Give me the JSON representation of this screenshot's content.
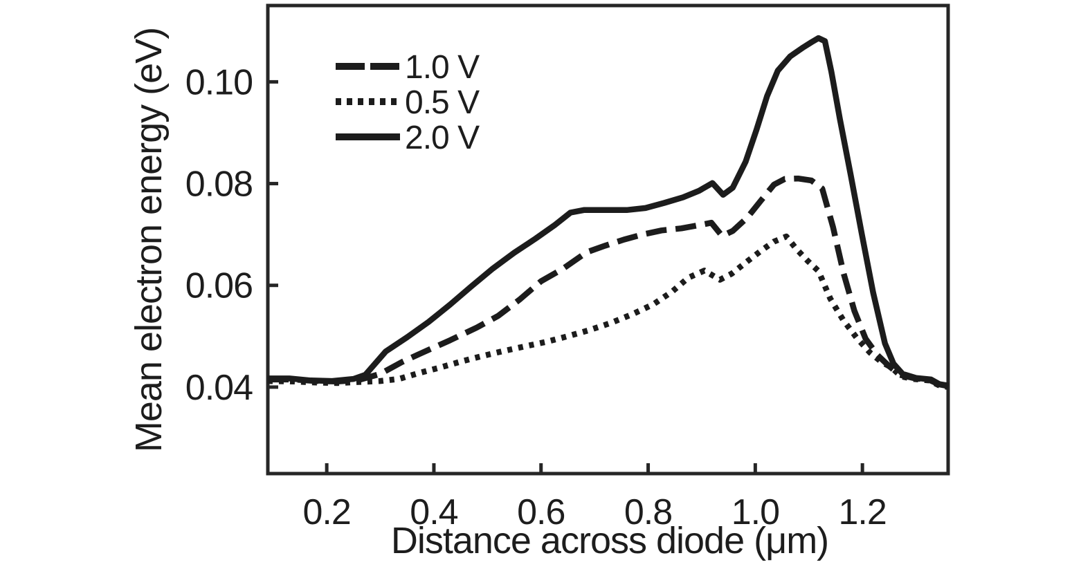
{
  "figure": {
    "background_color": "#ffffff",
    "line_color": "#1c1c1c",
    "axis_color": "#262626"
  },
  "chart_data": {
    "type": "line",
    "title": "",
    "xlabel": "Distance across diode (μm)",
    "ylabel": "Mean electron energy (eV)",
    "xlim": [
      0.09,
      1.36
    ],
    "ylim": [
      0.023,
      0.115
    ],
    "x_ticks": [
      0.2,
      0.4,
      0.6,
      0.8,
      1.0,
      1.2
    ],
    "x_tick_labels": [
      "0.2",
      "0.4",
      "0.6",
      "0.8",
      "1.0",
      "1.2"
    ],
    "y_ticks": [
      0.04,
      0.06,
      0.08,
      0.1
    ],
    "y_tick_labels": [
      "0.04",
      "0.06",
      "0.08",
      "0.10"
    ],
    "grid": false,
    "legend_position": "upper left inside plot",
    "series": [
      {
        "name": "1.0 V",
        "style": "dashed",
        "color": "#1c1c1c",
        "points": [
          [
            0.09,
            0.0415
          ],
          [
            0.14,
            0.0415
          ],
          [
            0.18,
            0.0412
          ],
          [
            0.22,
            0.0411
          ],
          [
            0.26,
            0.0414
          ],
          [
            0.3,
            0.0426
          ],
          [
            0.34,
            0.0449
          ],
          [
            0.375,
            0.0466
          ],
          [
            0.43,
            0.0492
          ],
          [
            0.48,
            0.0517
          ],
          [
            0.52,
            0.054
          ],
          [
            0.56,
            0.0572
          ],
          [
            0.6,
            0.0608
          ],
          [
            0.64,
            0.0632
          ],
          [
            0.685,
            0.0665
          ],
          [
            0.72,
            0.0678
          ],
          [
            0.755,
            0.069
          ],
          [
            0.79,
            0.07
          ],
          [
            0.825,
            0.0708
          ],
          [
            0.862,
            0.0712
          ],
          [
            0.898,
            0.0719
          ],
          [
            0.918,
            0.0723
          ],
          [
            0.938,
            0.0697
          ],
          [
            0.958,
            0.0707
          ],
          [
            0.985,
            0.0733
          ],
          [
            1.01,
            0.0766
          ],
          [
            1.035,
            0.0798
          ],
          [
            1.055,
            0.0809
          ],
          [
            1.08,
            0.081
          ],
          [
            1.105,
            0.0806
          ],
          [
            1.125,
            0.079
          ],
          [
            1.145,
            0.0715
          ],
          [
            1.165,
            0.0623
          ],
          [
            1.185,
            0.055
          ],
          [
            1.206,
            0.0495
          ],
          [
            1.228,
            0.0463
          ],
          [
            1.25,
            0.0441
          ],
          [
            1.27,
            0.0424
          ],
          [
            1.295,
            0.0418
          ],
          [
            1.325,
            0.0414
          ],
          [
            1.342,
            0.0406
          ],
          [
            1.36,
            0.0403
          ]
        ]
      },
      {
        "name": "0.5 V",
        "style": "dotted",
        "color": "#1c1c1c",
        "points": [
          [
            0.09,
            0.0412
          ],
          [
            0.14,
            0.0411
          ],
          [
            0.18,
            0.0409
          ],
          [
            0.22,
            0.0408
          ],
          [
            0.26,
            0.041
          ],
          [
            0.3,
            0.0412
          ],
          [
            0.335,
            0.0416
          ],
          [
            0.37,
            0.0427
          ],
          [
            0.41,
            0.0438
          ],
          [
            0.45,
            0.045
          ],
          [
            0.49,
            0.0461
          ],
          [
            0.53,
            0.0471
          ],
          [
            0.57,
            0.048
          ],
          [
            0.61,
            0.0489
          ],
          [
            0.65,
            0.05
          ],
          [
            0.69,
            0.0512
          ],
          [
            0.73,
            0.0526
          ],
          [
            0.77,
            0.0543
          ],
          [
            0.81,
            0.0563
          ],
          [
            0.845,
            0.0588
          ],
          [
            0.875,
            0.0615
          ],
          [
            0.905,
            0.0629
          ],
          [
            0.934,
            0.0611
          ],
          [
            0.956,
            0.0623
          ],
          [
            0.985,
            0.0647
          ],
          [
            1.012,
            0.0669
          ],
          [
            1.035,
            0.0686
          ],
          [
            1.058,
            0.0696
          ],
          [
            1.078,
            0.067
          ],
          [
            1.098,
            0.0648
          ],
          [
            1.118,
            0.0628
          ],
          [
            1.14,
            0.0574
          ],
          [
            1.164,
            0.0532
          ],
          [
            1.19,
            0.0496
          ],
          [
            1.214,
            0.0468
          ],
          [
            1.235,
            0.045
          ],
          [
            1.255,
            0.0438
          ],
          [
            1.272,
            0.0421
          ],
          [
            1.295,
            0.0416
          ],
          [
            1.325,
            0.0413
          ],
          [
            1.342,
            0.0404
          ],
          [
            1.36,
            0.04
          ]
        ]
      },
      {
        "name": "2.0 V",
        "style": "solid",
        "color": "#1c1c1c",
        "points": [
          [
            0.09,
            0.0417
          ],
          [
            0.13,
            0.0417
          ],
          [
            0.17,
            0.0413
          ],
          [
            0.21,
            0.0412
          ],
          [
            0.25,
            0.0416
          ],
          [
            0.272,
            0.0424
          ],
          [
            0.31,
            0.047
          ],
          [
            0.35,
            0.0498
          ],
          [
            0.39,
            0.0528
          ],
          [
            0.43,
            0.0562
          ],
          [
            0.47,
            0.0598
          ],
          [
            0.51,
            0.0633
          ],
          [
            0.55,
            0.0664
          ],
          [
            0.59,
            0.0692
          ],
          [
            0.625,
            0.0718
          ],
          [
            0.655,
            0.0743
          ],
          [
            0.68,
            0.0748
          ],
          [
            0.72,
            0.0748
          ],
          [
            0.76,
            0.0748
          ],
          [
            0.795,
            0.0752
          ],
          [
            0.83,
            0.0762
          ],
          [
            0.865,
            0.0773
          ],
          [
            0.895,
            0.0786
          ],
          [
            0.92,
            0.0801
          ],
          [
            0.94,
            0.0778
          ],
          [
            0.958,
            0.0792
          ],
          [
            0.982,
            0.0843
          ],
          [
            1.002,
            0.0905
          ],
          [
            1.022,
            0.0972
          ],
          [
            1.042,
            0.1022
          ],
          [
            1.065,
            0.105
          ],
          [
            1.09,
            0.1068
          ],
          [
            1.105,
            0.1078
          ],
          [
            1.118,
            0.1086
          ],
          [
            1.13,
            0.108
          ],
          [
            1.142,
            0.102
          ],
          [
            1.158,
            0.0927
          ],
          [
            1.178,
            0.0818
          ],
          [
            1.199,
            0.07
          ],
          [
            1.22,
            0.0586
          ],
          [
            1.242,
            0.0486
          ],
          [
            1.258,
            0.0446
          ],
          [
            1.275,
            0.0426
          ],
          [
            1.3,
            0.0418
          ],
          [
            1.328,
            0.0415
          ],
          [
            1.345,
            0.0405
          ],
          [
            1.36,
            0.0402
          ]
        ]
      }
    ]
  }
}
